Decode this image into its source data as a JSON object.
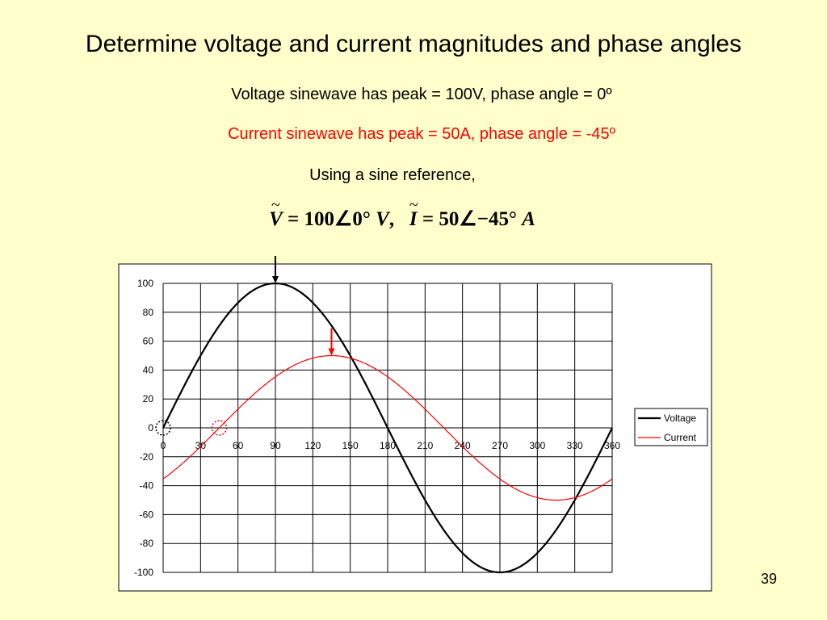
{
  "slide": {
    "title": "Determine voltage and current magnitudes and phase angles",
    "voltage_text": "Voltage sinewave has peak = 100V, phase angle = 0º",
    "current_text": "Current sinewave has peak = 50A, phase angle = -45º",
    "reference_text": "Using a sine reference,",
    "equation": {
      "v_symbol": "V",
      "v_value": "100∠0°",
      "v_unit": "V",
      "separator": ",",
      "i_symbol": "I",
      "i_value": "50∠−45°",
      "i_unit": "A",
      "tilde": "~"
    },
    "page_number": "39"
  },
  "colors": {
    "background": "#ffffcc",
    "voltage": "#000000",
    "current": "#ff0000"
  },
  "chart_data": {
    "type": "line",
    "x_ticks": [
      0,
      30,
      60,
      90,
      120,
      150,
      180,
      210,
      240,
      270,
      300,
      330,
      360
    ],
    "y_ticks": [
      100,
      80,
      60,
      40,
      20,
      0,
      -20,
      -40,
      -60,
      -80,
      -100
    ],
    "xlim": [
      0,
      360
    ],
    "ylim": [
      -100,
      100
    ],
    "grid": true,
    "legend_position": "right",
    "series": [
      {
        "name": "Voltage",
        "amplitude": 100,
        "phase_deg": 0,
        "color": "#000000"
      },
      {
        "name": "Current",
        "amplitude": 50,
        "phase_deg": -45,
        "color": "#ff0000"
      }
    ],
    "annotations": [
      {
        "type": "arrow",
        "target": "Voltage peak",
        "x": 90,
        "y": 100,
        "color": "#000000"
      },
      {
        "type": "arrow",
        "target": "Current peak",
        "x": 135,
        "y": 50,
        "color": "#ff0000"
      },
      {
        "type": "dotted-circle",
        "target": "Voltage zero crossing",
        "x": 0,
        "y": 0,
        "color": "#000000"
      },
      {
        "type": "dotted-circle",
        "target": "Current zero crossing",
        "x": 45,
        "y": 0,
        "color": "#ff0000"
      }
    ]
  }
}
